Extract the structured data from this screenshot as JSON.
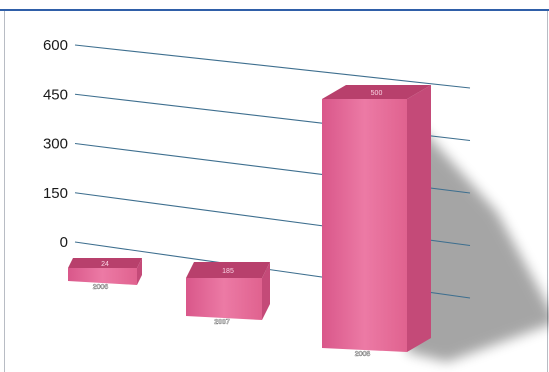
{
  "header": {
    "title": "",
    "accent_color": "#2f5fa8"
  },
  "chart_data": {
    "type": "bar",
    "title": "",
    "xlabel": "",
    "ylabel": "",
    "categories": [
      "2006",
      "2007",
      "2008"
    ],
    "values": [
      24,
      185,
      500
    ],
    "value_labels": [
      "24",
      "185",
      "500"
    ],
    "y_ticks": [
      "600",
      "450",
      "300",
      "150",
      "0"
    ],
    "ylim": [
      0,
      600
    ],
    "grid": true,
    "legend": "none",
    "bar_color": "#e0628f",
    "bar_top_color": "#b8406c",
    "bar_side_color": "#c44a78",
    "gridline_color": "#3e6f8f",
    "style": "3d-perspective"
  }
}
